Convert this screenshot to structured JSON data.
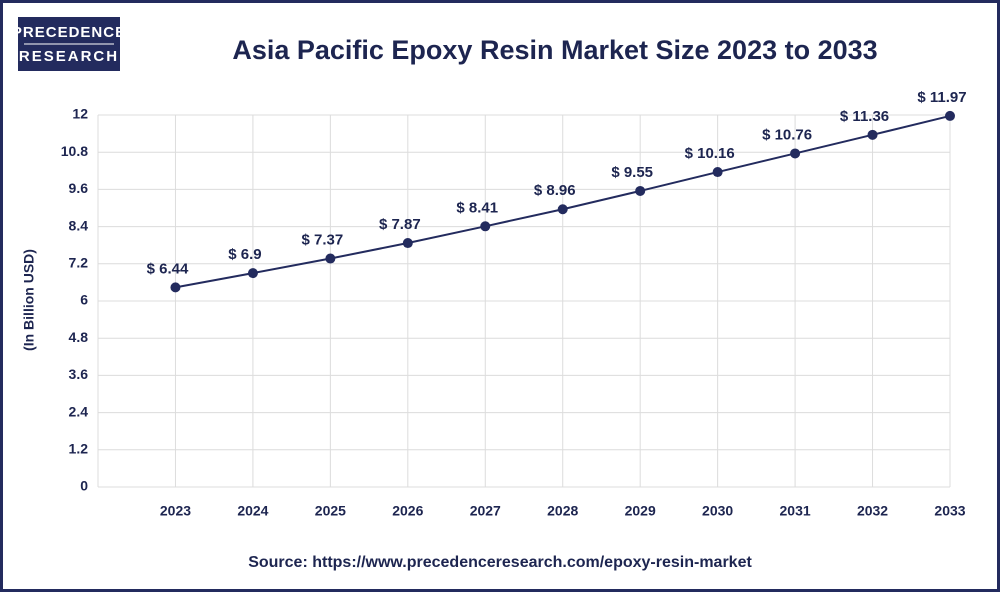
{
  "logo": {
    "line1": "PRECEDENCE",
    "line2": "RESEARCH"
  },
  "chart_data": {
    "type": "line",
    "title": "Asia Pacific Epoxy Resin Market Size 2023 to 2033",
    "y_label": "(In Billion USD)",
    "source": "Source: https://www.precedenceresearch.com/epoxy-resin-market",
    "categories": [
      "2023",
      "2024",
      "2025",
      "2026",
      "2027",
      "2028",
      "2029",
      "2030",
      "2031",
      "2032",
      "2033"
    ],
    "values": [
      6.44,
      6.9,
      7.37,
      7.87,
      8.41,
      8.96,
      9.55,
      10.16,
      10.76,
      11.36,
      11.97
    ],
    "value_labels": [
      "$ 6.44",
      "$ 6.9",
      "$ 7.37",
      "$ 7.87",
      "$ 8.41",
      "$ 8.96",
      "$ 9.55",
      "$ 10.16",
      "$ 10.76",
      "$ 11.36",
      "$ 11.97"
    ],
    "color": "#232b5e",
    "ylim": [
      0,
      12
    ],
    "yticks": [
      0,
      1.2,
      2.4,
      3.6,
      4.8,
      6,
      7.2,
      8.4,
      9.6,
      10.8,
      12
    ],
    "grid": true
  }
}
